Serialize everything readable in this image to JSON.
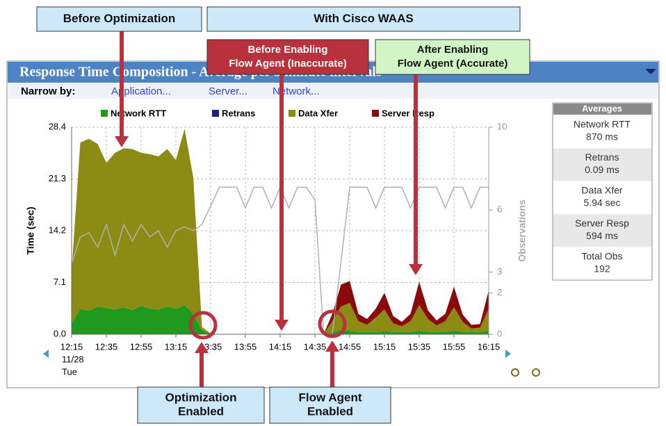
{
  "panel": {
    "title": "Response Time Composition - Average per 5 minute intervals",
    "narrow_label": "Narrow by:",
    "links": [
      "Application...",
      "Server...",
      "Network..."
    ]
  },
  "chart_data": {
    "type": "stacked-area",
    "categories": [
      "12:15",
      null,
      null,
      null,
      "12:35",
      null,
      null,
      null,
      "12:55",
      null,
      null,
      null,
      "13:15",
      null,
      null,
      null,
      "13:35",
      null,
      null,
      null,
      "13:55",
      null,
      null,
      null,
      "14:15",
      null,
      null,
      null,
      "14:35",
      null,
      null,
      null,
      "14:55",
      null,
      null,
      null,
      "15:15",
      null,
      null,
      null,
      "15:35",
      null,
      null,
      null,
      "15:55",
      null,
      null,
      null,
      "16:15"
    ],
    "x_sublabels": [
      "11/28",
      "Tue"
    ],
    "y_label": "Time (sec)",
    "y2_label": "Observations",
    "ylim": [
      0,
      28.4
    ],
    "yticks": [
      {
        "value": 0,
        "label": "0.0"
      },
      7.1,
      14.2,
      21.3,
      28.4
    ],
    "y2lim": [
      0,
      10
    ],
    "y2ticks": [
      0,
      2,
      3,
      6,
      10
    ],
    "grid": true,
    "series": [
      {
        "name": "Network RTT",
        "color": "#1f9a1f",
        "values": [
          1.5,
          3.5,
          3.2,
          3.8,
          3.6,
          3.4,
          3.7,
          3.3,
          3.9,
          3.5,
          3.4,
          3.8,
          3.5,
          4.0,
          2.8,
          0.5,
          0.1,
          0,
          0,
          0,
          0,
          0,
          0,
          0,
          0,
          0,
          0,
          0,
          0,
          0,
          0.3,
          0.6,
          0.5,
          0.3,
          0.3,
          0.3,
          0.4,
          0.3,
          0.3,
          0.3,
          0.5,
          0.3,
          0.3,
          0.3,
          0.5,
          0.3,
          0.3,
          0.3,
          0.5
        ]
      },
      {
        "name": "Retrans",
        "color": "#1a237e",
        "values": [
          0,
          0,
          0,
          0,
          0,
          0,
          0,
          0,
          0,
          0,
          0,
          0,
          0,
          0,
          0,
          0,
          0,
          0,
          0,
          0,
          0,
          0,
          0,
          0,
          0,
          0,
          0,
          0,
          0,
          0,
          0,
          0,
          0,
          0,
          0,
          0,
          0,
          0,
          0,
          0,
          0,
          0,
          0,
          0,
          0,
          0,
          0,
          0,
          0
        ]
      },
      {
        "name": "Data Xfer",
        "color": "#8c8c14",
        "values": [
          7.2,
          22.8,
          23.6,
          22.3,
          19.9,
          21.5,
          21.8,
          22.1,
          21.0,
          21.2,
          21.0,
          21.6,
          20.4,
          24.2,
          18.7,
          0.5,
          0,
          0,
          0,
          0,
          0,
          0,
          0,
          0,
          0,
          0,
          0,
          0,
          0,
          0,
          1.5,
          3.2,
          3.8,
          1.5,
          1.0,
          2.0,
          3.0,
          1.2,
          0.8,
          1.5,
          3.5,
          1.8,
          0.9,
          1.5,
          3.2,
          1.4,
          0.5,
          0.6,
          3.0
        ]
      },
      {
        "name": "Server Resp",
        "color": "#8b0a0a",
        "values": [
          0,
          0,
          0,
          0,
          0,
          0,
          0,
          0,
          0,
          0,
          0,
          0,
          0,
          0,
          0,
          0,
          0,
          0,
          0,
          0,
          0,
          0,
          0,
          0,
          0,
          0,
          0,
          0,
          0,
          0,
          1.0,
          3.0,
          3.0,
          1.0,
          0.8,
          1.2,
          2.3,
          1.0,
          0.6,
          1.0,
          3.2,
          1.2,
          0.7,
          1.0,
          2.8,
          1.0,
          0.5,
          0.5,
          2.5
        ]
      },
      {
        "name": "Observations",
        "color": "#b0b0b0",
        "axis": "y2",
        "line": true,
        "values": [
          3.4,
          4.7,
          4.9,
          4.2,
          5.3,
          3.8,
          5.3,
          4.5,
          5.3,
          4.7,
          5.0,
          4.2,
          5.0,
          5.2,
          5.0,
          5.3,
          6.2,
          7.1,
          7.1,
          7.1,
          6.1,
          7.1,
          7.1,
          6.1,
          7.1,
          6.1,
          7.1,
          7.1,
          6.5,
          0,
          0,
          3.5,
          7.1,
          7.1,
          7.1,
          6.1,
          7.1,
          7.1,
          7.1,
          6.1,
          7.1,
          7.1,
          7.1,
          6.1,
          7.1,
          7.1,
          6.1,
          7.1,
          7.1
        ]
      }
    ]
  },
  "averages": {
    "title": "Averages",
    "rows": [
      [
        "Network RTT",
        "870 ms"
      ],
      [
        "Retrans",
        "0.09 ms"
      ],
      [
        "Data Xfer",
        "5.94 sec"
      ],
      [
        "Server Resp",
        "594 ms"
      ],
      [
        "Total Obs",
        "192"
      ]
    ]
  },
  "callouts": [
    {
      "lines": [
        "Before Optimization"
      ]
    },
    {
      "lines": [
        "With Cisco WAAS"
      ]
    },
    {
      "lines": [
        "Before Enabling",
        "Flow Agent (Inaccurate)"
      ]
    },
    {
      "lines": [
        "After Enabling",
        "Flow Agent (Accurate)"
      ]
    },
    {
      "lines": [
        "Optimization",
        "Enabled"
      ]
    },
    {
      "lines": [
        "Flow Agent",
        "Enabled"
      ]
    }
  ]
}
